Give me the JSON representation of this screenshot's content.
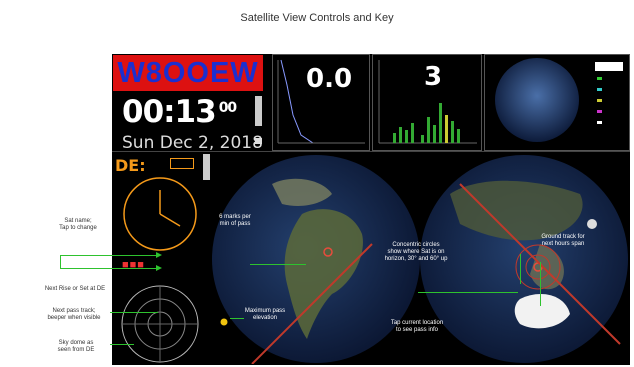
{
  "page": {
    "title": "Satellite View Controls and Key"
  },
  "header": {
    "callsign": "W8OOEW",
    "time_hm": "00:13",
    "time_sec": "00",
    "date": "Sun Dec 2, 2018"
  },
  "panes": {
    "value_a": "0.0",
    "value_b": "3",
    "de_label": "DE:"
  },
  "callouts": {
    "sat_name": "Sat name;\nTap to change",
    "next_rise": "Next Rise or Set at DE",
    "next_pass": "Next pass track;\nbeeper when visible",
    "sky_dome": "Sky dome as\nseen from DE"
  },
  "annotations": {
    "marks": "6 marks per\nmin of pass",
    "max_pass": "Maximum pass\nelevation",
    "concentric": "Concentric circles\nshow where Sat is on\nhorizon, 30° and 60° up",
    "ground_track": "Ground track for\nnext hours span",
    "tap_location": "Tap current location\nto see pass info"
  },
  "colors": {
    "accent": "#d11111",
    "callsign": "#1b2fd0",
    "callout_line": "#2ec22e",
    "de_orange": "#f59a1a"
  }
}
